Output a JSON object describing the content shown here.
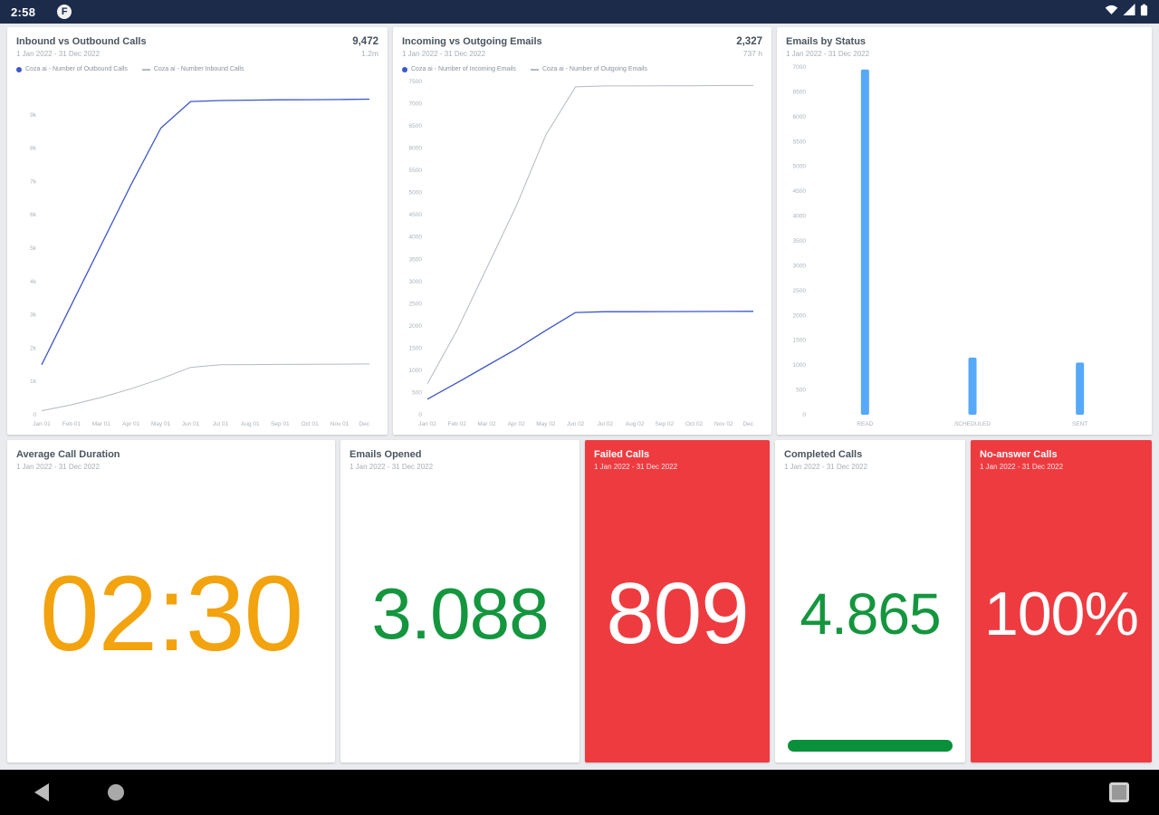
{
  "status_bar": {
    "time": "2:58",
    "badge_letter": "F"
  },
  "colors": {
    "statusbar_bg": "#1c2b4a",
    "line_blue": "#3d56c8",
    "line_gray": "#b3b9c0",
    "bar_blue": "#55a9f8",
    "red_card": "#ee3b40",
    "green_number": "#14963e",
    "orange_number": "#f2a30d",
    "progress_green": "#0a8f3b"
  },
  "chart_data": [
    {
      "type": "line",
      "title": "Inbound vs Outbound Calls",
      "subtitle": "1 Jan 2022 - 31 Dec 2022",
      "kpi": "9,472",
      "kpi_sub": "1.2m",
      "legend_position": "top",
      "grid": false,
      "ylim": [
        0,
        10000
      ],
      "yticks": [
        [
          0,
          "0"
        ],
        [
          1000,
          "1k"
        ],
        [
          2000,
          "2k"
        ],
        [
          3000,
          "3k"
        ],
        [
          4000,
          "4k"
        ],
        [
          5000,
          "5k"
        ],
        [
          6000,
          "6k"
        ],
        [
          7000,
          "7k"
        ],
        [
          8000,
          "8k"
        ],
        [
          9000,
          "9k"
        ]
      ],
      "categories": [
        "Jan 01",
        "Feb 01",
        "Mar 01",
        "Apr 01",
        "May 01",
        "Jun 01",
        "Jul 01",
        "Aug 01",
        "Sep 01",
        "Oct 01",
        "Nov 01",
        "Dec"
      ],
      "series": [
        {
          "name": "Coza ai - Number of Outbound Calls",
          "color": "#3d56c8",
          "width": 1.3,
          "values": [
            1500,
            3300,
            5100,
            6900,
            8600,
            9400,
            9430,
            9440,
            9450,
            9455,
            9460,
            9470
          ]
        },
        {
          "name": "Coza ai - Number Inbound Calls",
          "color": "#b3b9c0",
          "width": 1,
          "values": [
            120,
            300,
            520,
            780,
            1080,
            1420,
            1500,
            1505,
            1510,
            1515,
            1520,
            1525
          ]
        }
      ]
    },
    {
      "type": "line",
      "title": "Incoming vs Outgoing Emails",
      "subtitle": "1 Jan 2022 - 31 Dec 2022",
      "kpi": "2,327",
      "kpi_sub": "737 h",
      "legend_position": "top",
      "grid": false,
      "ylim": [
        0,
        7500
      ],
      "yticks": [
        [
          0,
          "0"
        ],
        [
          500,
          "500"
        ],
        [
          1000,
          "1000"
        ],
        [
          1500,
          "1500"
        ],
        [
          2000,
          "2000"
        ],
        [
          2500,
          "2500"
        ],
        [
          3000,
          "3000"
        ],
        [
          3500,
          "3500"
        ],
        [
          4000,
          "4000"
        ],
        [
          4500,
          "4500"
        ],
        [
          5000,
          "5000"
        ],
        [
          5500,
          "5500"
        ],
        [
          6000,
          "6000"
        ],
        [
          6500,
          "6500"
        ],
        [
          7000,
          "7000"
        ],
        [
          7500,
          "7500"
        ]
      ],
      "categories": [
        "Jan 02",
        "Feb 02",
        "Mar 02",
        "Apr 02",
        "May 02",
        "Jun 02",
        "Jul 02",
        "Aug 02",
        "Sep 02",
        "Oct 02",
        "Nov 02",
        "Dec"
      ],
      "series": [
        {
          "name": "Coza ai - Number of Incoming Emails",
          "color": "#3d56c8",
          "width": 1.3,
          "values": [
            350,
            720,
            1100,
            1480,
            1900,
            2300,
            2320,
            2320,
            2322,
            2324,
            2326,
            2327
          ]
        },
        {
          "name": "Coza ai - Number of Outgoing Emails",
          "color": "#b3b9c0",
          "width": 1,
          "values": [
            700,
            1900,
            3300,
            4700,
            6300,
            7380,
            7400,
            7400,
            7405,
            7405,
            7410,
            7410
          ]
        }
      ]
    },
    {
      "type": "bar",
      "title": "Emails by Status",
      "subtitle": "1 Jan 2022 - 31 Dec 2022",
      "grid": false,
      "ylim": [
        0,
        7000
      ],
      "yticks": [
        [
          0,
          "0"
        ],
        [
          500,
          "500"
        ],
        [
          1000,
          "1000"
        ],
        [
          1500,
          "1500"
        ],
        [
          2000,
          "2000"
        ],
        [
          2500,
          "2500"
        ],
        [
          3000,
          "3000"
        ],
        [
          3500,
          "3500"
        ],
        [
          4000,
          "4000"
        ],
        [
          4500,
          "4500"
        ],
        [
          5000,
          "5000"
        ],
        [
          5500,
          "5500"
        ],
        [
          6000,
          "6000"
        ],
        [
          6500,
          "6500"
        ],
        [
          7000,
          "7000"
        ]
      ],
      "categories": [
        "READ",
        "SCHEDULED",
        "SENT"
      ],
      "values": [
        6950,
        1150,
        1050
      ],
      "bar_color": "#55a9f8"
    }
  ],
  "big_cards": [
    {
      "title": "Average Call Duration",
      "subtitle": "1 Jan 2022 - 31 Dec 2022",
      "value": "02:30"
    },
    {
      "title": "Emails Opened",
      "subtitle": "1 Jan 2022 - 31 Dec 2022",
      "value": "3.088"
    },
    {
      "title": "Failed Calls",
      "subtitle": "1 Jan 2022 - 31 Dec 2022",
      "value": "809"
    },
    {
      "title": "Completed Calls",
      "subtitle": "1 Jan 2022 - 31 Dec 2022",
      "value": "4.865"
    },
    {
      "title": "No-answer Calls",
      "subtitle": "1 Jan 2022 - 31 Dec 2022",
      "value": "100%"
    }
  ],
  "nav_bar": {
    "back": "back",
    "home": "home",
    "recents": "recents"
  }
}
